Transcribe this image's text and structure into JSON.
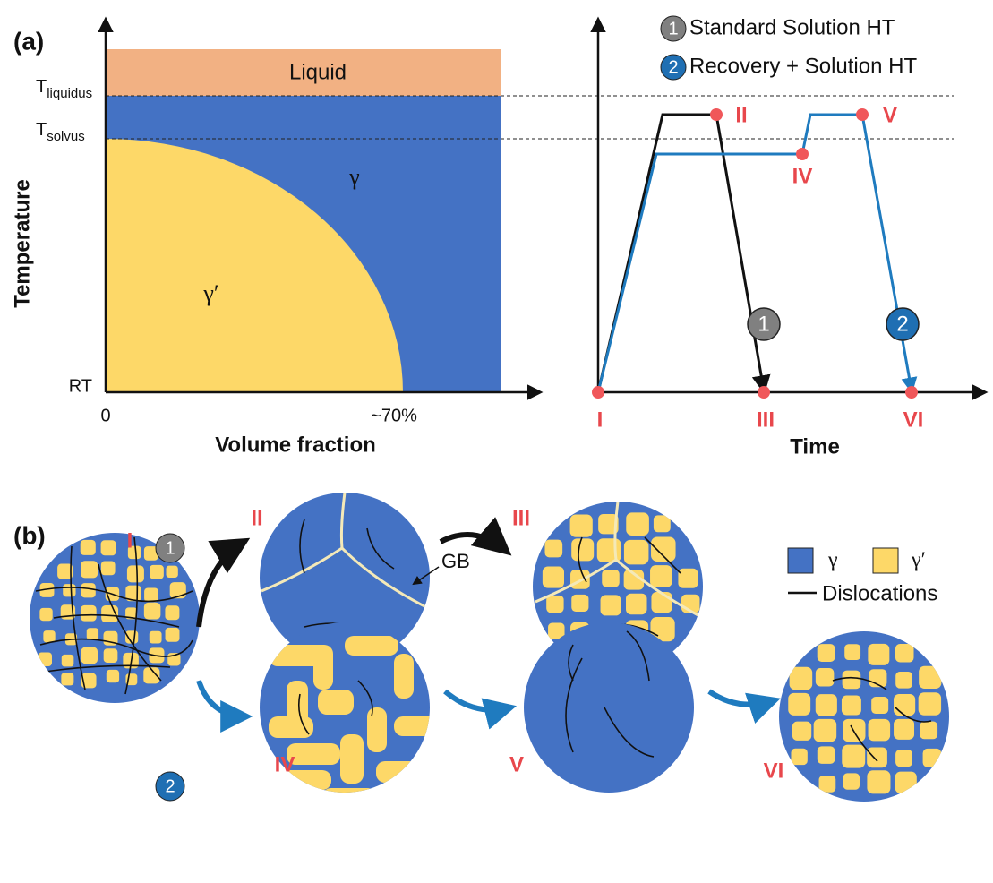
{
  "panel_a": {
    "label": "(a)",
    "phase_diagram": {
      "y_label": "Temperature",
      "x_label": "Volume fraction",
      "t_liquidus": {
        "symbol": "T",
        "subscript": "liquidus"
      },
      "t_solvus": {
        "symbol": "T",
        "subscript": "solvus"
      },
      "rt": "RT",
      "x_start": "0",
      "x_end": "~70%",
      "regions": {
        "liquid": "Liquid",
        "gamma": "γ",
        "gamma_prime": "γ′"
      }
    },
    "schedule": {
      "x_label": "Time",
      "legend": [
        {
          "number": "1",
          "text": "Standard Solution HT"
        },
        {
          "number": "2",
          "text": "Recovery + Solution HT"
        }
      ],
      "points": [
        "I",
        "II",
        "III",
        "IV",
        "V",
        "VI"
      ]
    }
  },
  "panel_b": {
    "label": "(b)",
    "routes": [
      "1",
      "2"
    ],
    "stages": [
      "I",
      "II",
      "III",
      "IV",
      "V",
      "VI"
    ],
    "gb_label": "GB",
    "legend": {
      "gamma": "γ",
      "gamma_prime": "γ′",
      "dislocations": "Dislocations"
    }
  }
}
